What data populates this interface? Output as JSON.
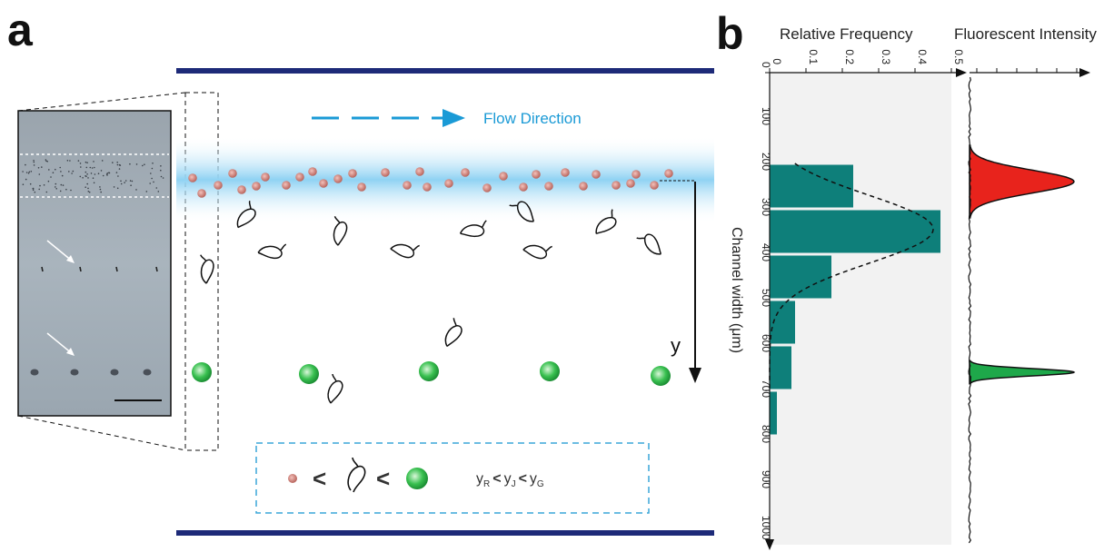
{
  "panel_a": {
    "letter": "a",
    "flow_label": "Flow Direction",
    "axis_label": "y",
    "legend": {
      "y_r": "y",
      "sub_r": "R",
      "y_j": "y",
      "sub_j": "J",
      "y_g": "y",
      "sub_g": "G",
      "less_than": "<"
    },
    "colors": {
      "channel_wall": "#1d2a78",
      "flow_arrow": "#1a9ad6",
      "focus_band": "#9fd8f5",
      "red_particle": "#c97a72",
      "green_particle": "#2eb84a"
    }
  },
  "panel_b": {
    "letter": "b",
    "rf_title": "Relative Frequency",
    "fi_title": "Fluorescent Intensity",
    "y_title": "Channel width (μm)"
  },
  "chart_data": {
    "type": "bar",
    "orientation": "horizontal",
    "xlabel": "Relative Frequency",
    "ylabel": "Channel width (μm)",
    "x_ticks": [
      "0",
      "0.1",
      "0.2",
      "0.3",
      "0.4",
      "0.5"
    ],
    "y_ticks": [
      "0",
      "100",
      "200",
      "300",
      "400",
      "500",
      "600",
      "700",
      "800",
      "900",
      "1000"
    ],
    "xlim": [
      0,
      0.5
    ],
    "ylim": [
      0,
      1000
    ],
    "bins": [
      {
        "from": 200,
        "to": 300,
        "value": 0.23
      },
      {
        "from": 300,
        "to": 400,
        "value": 0.47
      },
      {
        "from": 400,
        "to": 500,
        "value": 0.17
      },
      {
        "from": 500,
        "to": 600,
        "value": 0.07
      },
      {
        "from": 600,
        "to": 700,
        "value": 0.06
      },
      {
        "from": 700,
        "to": 800,
        "value": 0.02
      }
    ],
    "fit_curve": {
      "type": "gaussian",
      "mean": 345,
      "sigma": 75,
      "peak": 0.45,
      "from": 200,
      "to": 700
    },
    "fluorescence_peaks": [
      {
        "color": "#e8231c",
        "center": 240,
        "width": 25,
        "height": 1.0
      },
      {
        "color": "#1ea84a",
        "center": 660,
        "width": 8,
        "height": 1.0
      }
    ],
    "bar_color": "#0e7f7a"
  }
}
